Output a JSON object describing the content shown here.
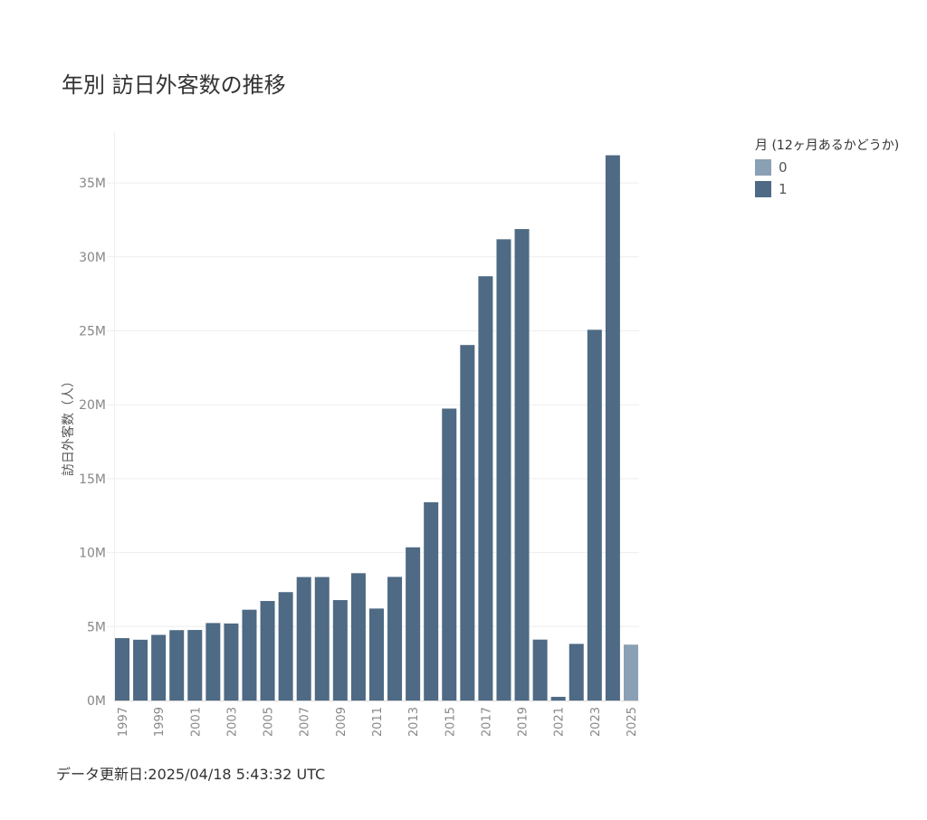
{
  "title": "年別 訪日外客数の推移",
  "footer": "データ更新日:2025/04/18 5:43:32 UTC",
  "colors": {
    "full_year": "#4e6a84",
    "partial_year": "#8aa0b4",
    "grid": "#eeeeee",
    "tick_text": "#888888"
  },
  "legend": {
    "title": "月 (12ヶ月あるかどうか)",
    "items": [
      {
        "label": "0",
        "color": "#8aa0b4"
      },
      {
        "label": "1",
        "color": "#4e6a84"
      }
    ]
  },
  "chart_data": {
    "type": "bar",
    "title": "年別 訪日外客数の推移",
    "xlabel": "",
    "ylabel": "訪日外客数（人）",
    "ylim": [
      0,
      38500000
    ],
    "yticks": [
      0,
      5000000,
      10000000,
      15000000,
      20000000,
      25000000,
      30000000,
      35000000
    ],
    "ytick_labels": [
      "0M",
      "5M",
      "10M",
      "15M",
      "20M",
      "25M",
      "30M",
      "35M"
    ],
    "grid": true,
    "legend_position": "top-right",
    "categories": [
      "1997",
      "1998",
      "1999",
      "2000",
      "2001",
      "2002",
      "2003",
      "2004",
      "2005",
      "2006",
      "2007",
      "2008",
      "2009",
      "2010",
      "2011",
      "2012",
      "2013",
      "2014",
      "2015",
      "2016",
      "2017",
      "2018",
      "2019",
      "2020",
      "2021",
      "2022",
      "2023",
      "2024",
      "2025"
    ],
    "xtick_labels": [
      "1997",
      "1999",
      "2001",
      "2003",
      "2005",
      "2007",
      "2009",
      "2011",
      "2013",
      "2015",
      "2017",
      "2019",
      "2021",
      "2023",
      "2025"
    ],
    "values": [
      4220000,
      4110000,
      4440000,
      4760000,
      4770000,
      5240000,
      5210000,
      6140000,
      6730000,
      7330000,
      8350000,
      8350000,
      6790000,
      8610000,
      6220000,
      8360000,
      10360000,
      13410000,
      19740000,
      24040000,
      28690000,
      31190000,
      31880000,
      4120000,
      250000,
      3830000,
      25070000,
      36870000,
      3780000
    ],
    "full_year_flag": [
      1,
      1,
      1,
      1,
      1,
      1,
      1,
      1,
      1,
      1,
      1,
      1,
      1,
      1,
      1,
      1,
      1,
      1,
      1,
      1,
      1,
      1,
      1,
      1,
      1,
      1,
      1,
      1,
      0
    ]
  }
}
